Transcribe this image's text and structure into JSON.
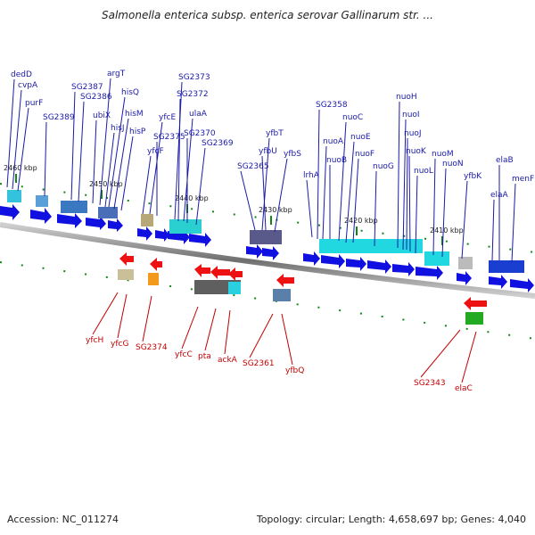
{
  "title": "Salmonella enterica subsp. enterica serovar Gallinarum str. ...",
  "footer": {
    "accession": "Accession: NC_011274",
    "summary": "Topology: circular; Length: 4,658,697 bp; Genes: 4,040"
  },
  "scale_labels": [
    "2460 kbp",
    "2450 kbp",
    "2440 kbp",
    "2430 kbp",
    "2420 kbp",
    "2410 kbp"
  ],
  "genes_top": [
    "dedD",
    "cvpA",
    "purF",
    "SG2389",
    "SG2387",
    "SG2386",
    "ubiX",
    "argT",
    "hisQ",
    "hisM",
    "hisJ",
    "hisP",
    "yfcE",
    "yfcF",
    "SG2375",
    "SG2373",
    "SG2372",
    "ulaA",
    "SG2370",
    "SG2369",
    "SG2365",
    "yfbT",
    "yfbU",
    "yfbS",
    "lrhA",
    "SG2358",
    "nuoA",
    "nuoB",
    "nuoC",
    "nuoE",
    "nuoF",
    "nuoG",
    "nuoH",
    "nuoI",
    "nuoJ",
    "nuoK",
    "nuoL",
    "nuoM",
    "nuoN",
    "yfbK",
    "elaB",
    "menF",
    "elaA"
  ],
  "genes_bottom": [
    "yfcH",
    "yfcG",
    "SG2374",
    "yfcC",
    "pta",
    "ackA",
    "SG2361",
    "yfbQ",
    "SG2343",
    "elaC"
  ],
  "colors": {
    "forward": "#1010e0",
    "reverse": "#ee1111",
    "backbone": "#888888",
    "tick": "#118811"
  }
}
